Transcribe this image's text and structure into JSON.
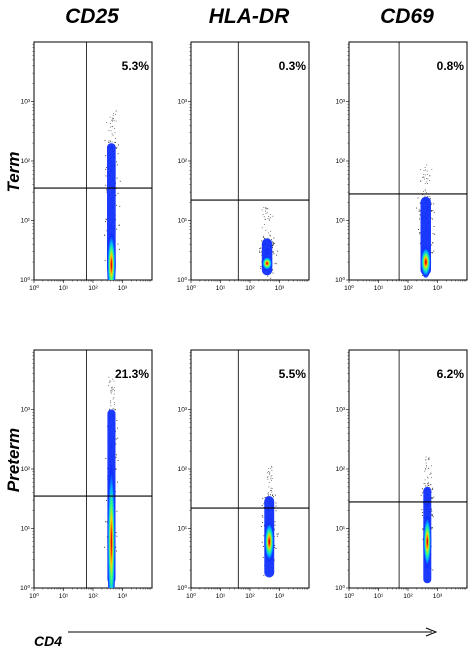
{
  "chart_data": {
    "type": "scatter",
    "columns": [
      "CD25",
      "HLA-DR",
      "CD69"
    ],
    "rows": [
      "Term",
      "Preterm"
    ],
    "xlabel": "CD4",
    "ylabel": "",
    "xscale": "log",
    "yscale": "log",
    "xlim": [
      1,
      10000
    ],
    "ylim": [
      1,
      10000
    ],
    "tick_labels": [
      "10⁰",
      "10¹",
      "10²",
      "10³"
    ],
    "panels": [
      {
        "row": "Term",
        "col": "CD25",
        "pct": "5.3%",
        "x_gate": 60,
        "y_gate": 35,
        "x_center": 420,
        "y_low": 1.3,
        "y_high": 200,
        "y_peak": 1.8,
        "sx": 0.14,
        "width_y": 0.5
      },
      {
        "row": "Term",
        "col": "HLA-DR",
        "pct": "0.3%",
        "x_gate": 40,
        "y_gate": 22,
        "x_center": 380,
        "y_low": 1.2,
        "y_high": 5,
        "y_peak": 1.9,
        "sx": 0.17,
        "width_y": 0.25
      },
      {
        "row": "Term",
        "col": "CD69",
        "pct": "0.8%",
        "x_gate": 50,
        "y_gate": 28,
        "x_center": 400,
        "y_low": 1.2,
        "y_high": 25,
        "y_peak": 2.0,
        "sx": 0.17,
        "width_y": 0.4
      },
      {
        "row": "Preterm",
        "col": "CD25",
        "pct": "21.3%",
        "x_gate": 60,
        "y_gate": 35,
        "x_center": 420,
        "y_low": 1.2,
        "y_high": 1000,
        "y_peak": 6,
        "sx": 0.13,
        "width_y": 0.9
      },
      {
        "row": "Preterm",
        "col": "HLA-DR",
        "pct": "5.5%",
        "x_gate": 40,
        "y_gate": 22,
        "x_center": 450,
        "y_low": 1.5,
        "y_high": 35,
        "y_peak": 6,
        "sx": 0.16,
        "width_y": 0.5
      },
      {
        "row": "Preterm",
        "col": "CD69",
        "pct": "6.2%",
        "x_gate": 50,
        "y_gate": 28,
        "x_center": 450,
        "y_low": 1.2,
        "y_high": 50,
        "y_peak": 6,
        "sx": 0.12,
        "width_y": 0.55
      }
    ]
  }
}
